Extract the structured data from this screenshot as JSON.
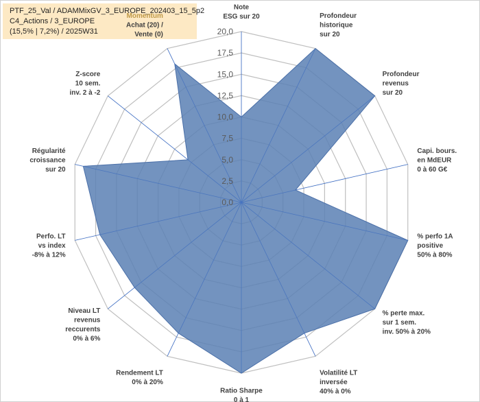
{
  "header": {
    "line1": "PTF_25_Val / ADAMMixGV_3_EUROPE_202403_15_5p2",
    "line2": "C4_Actions / 3_EUROPE",
    "line3": "(15,5% | 7,2%) / 2025W31"
  },
  "colors": {
    "fill": "#5b80b4",
    "outline": "#4a6fa8",
    "grid": "#bfbfbf",
    "spoke": "#4472c4",
    "header_bg": "#fde9c4",
    "highlight_label": "#c09a48"
  },
  "chart_data": {
    "type": "radar",
    "title": "",
    "rlim": [
      0,
      20
    ],
    "rticks": [
      "0,0",
      "2,5",
      "5,0",
      "7,5",
      "10,0",
      "12,5",
      "15,0",
      "17,5",
      "20,0"
    ],
    "grid": true,
    "axes": [
      {
        "lines": [
          "Note",
          "ESG sur 20"
        ],
        "value": 10
      },
      {
        "lines": [
          "Profondeur",
          "historique",
          "sur 20"
        ],
        "value": 20
      },
      {
        "lines": [
          "Profondeur",
          "revenus",
          "sur 20"
        ],
        "value": 20
      },
      {
        "lines": [
          "Capi. bours.",
          "en MdEUR",
          "0 à 60 G€"
        ],
        "value": 6.5
      },
      {
        "lines": [
          "% perfo 1A",
          "positive",
          "50% à 80%"
        ],
        "value": 20
      },
      {
        "lines": [
          "% perte max.",
          "sur 1 sem.",
          "inv. 50% à 20%"
        ],
        "value": 20
      },
      {
        "lines": [
          "Volatilité LT",
          "inversée",
          "40% à 0%"
        ],
        "value": 17
      },
      {
        "lines": [
          "Ratio Sharpe",
          "0 à 1"
        ],
        "value": 20
      },
      {
        "lines": [
          "Rendement LT",
          "0% à 20%"
        ],
        "value": 17
      },
      {
        "lines": [
          "Niveau LT",
          "revenus",
          "reccurents",
          "0% à 6%"
        ],
        "value": 16
      },
      {
        "lines": [
          "Perfo. LT",
          "vs index",
          "-8% à 12%"
        ],
        "value": 17
      },
      {
        "lines": [
          "Régularité",
          "croissance",
          "sur 20"
        ],
        "value": 19
      },
      {
        "lines": [
          "Z-score",
          "10 sem.",
          "inv. 2 à -2"
        ],
        "value": 8
      },
      {
        "lines": [
          "Momentum",
          "Achat (20) /",
          "Vente (0)"
        ],
        "value": 18,
        "highlight_first_line": true
      }
    ]
  }
}
